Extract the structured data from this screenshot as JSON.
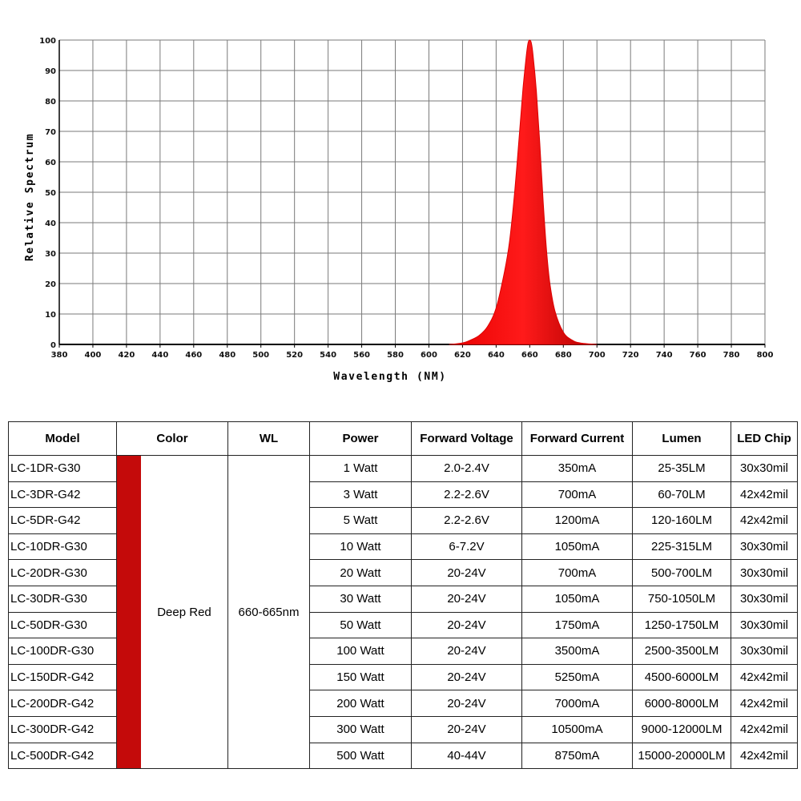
{
  "chart_data": {
    "type": "area",
    "title": "",
    "xlabel": "Wavelength (NM)",
    "ylabel": "Relative Spectrum",
    "xlim": [
      380,
      800
    ],
    "ylim": [
      0,
      100
    ],
    "x_ticks": [
      "380",
      "400",
      "420",
      "440",
      "460",
      "480",
      "500",
      "520",
      "540",
      "560",
      "580",
      "600",
      "620",
      "640",
      "660",
      "680",
      "700",
      "720",
      "740",
      "760",
      "780",
      "800"
    ],
    "y_ticks": [
      "0",
      "10",
      "20",
      "30",
      "40",
      "50",
      "60",
      "70",
      "80",
      "90",
      "100"
    ],
    "grid": true,
    "color": "#dd0000",
    "series": [
      {
        "x": [
          612,
          620,
          625,
          630,
          635,
          640,
          645,
          648,
          651,
          654,
          656,
          658,
          659,
          660,
          661,
          662,
          664,
          666,
          668,
          670,
          672,
          675,
          680,
          685,
          690,
          700
        ],
        "values": [
          0,
          0.5,
          1.5,
          3,
          6,
          12,
          24,
          34,
          50,
          70,
          84,
          95,
          99,
          100,
          99,
          95,
          83,
          66,
          47,
          31,
          20,
          11,
          4,
          1.5,
          0.5,
          0
        ]
      }
    ]
  },
  "table": {
    "headers": [
      "Model",
      "Color",
      "WL",
      "Power",
      "Forward Voltage",
      "Forward Current",
      "Lumen",
      "LED Chip"
    ],
    "color_name": "Deep Red",
    "color_hex": "#c40a0a",
    "wl": "660-665nm",
    "rows": [
      {
        "model": "LC-1DR-G30",
        "power": "1 Watt",
        "voltage": "2.0-2.4V",
        "current": "350mA",
        "lumen": "25-35LM",
        "chip": "30x30mil"
      },
      {
        "model": "LC-3DR-G42",
        "power": "3 Watt",
        "voltage": "2.2-2.6V",
        "current": "700mA",
        "lumen": "60-70LM",
        "chip": "42x42mil"
      },
      {
        "model": "LC-5DR-G42",
        "power": "5 Watt",
        "voltage": "2.2-2.6V",
        "current": "1200mA",
        "lumen": "120-160LM",
        "chip": "42x42mil"
      },
      {
        "model": "LC-10DR-G30",
        "power": "10 Watt",
        "voltage": "6-7.2V",
        "current": "1050mA",
        "lumen": "225-315LM",
        "chip": "30x30mil"
      },
      {
        "model": "LC-20DR-G30",
        "power": "20 Watt",
        "voltage": "20-24V",
        "current": "700mA",
        "lumen": "500-700LM",
        "chip": "30x30mil"
      },
      {
        "model": "LC-30DR-G30",
        "power": "30 Watt",
        "voltage": "20-24V",
        "current": "1050mA",
        "lumen": "750-1050LM",
        "chip": "30x30mil"
      },
      {
        "model": "LC-50DR-G30",
        "power": "50 Watt",
        "voltage": "20-24V",
        "current": "1750mA",
        "lumen": "1250-1750LM",
        "chip": "30x30mil"
      },
      {
        "model": "LC-100DR-G30",
        "power": "100 Watt",
        "voltage": "20-24V",
        "current": "3500mA",
        "lumen": "2500-3500LM",
        "chip": "30x30mil"
      },
      {
        "model": "LC-150DR-G42",
        "power": "150 Watt",
        "voltage": "20-24V",
        "current": "5250mA",
        "lumen": "4500-6000LM",
        "chip": "42x42mil"
      },
      {
        "model": "LC-200DR-G42",
        "power": "200 Watt",
        "voltage": "20-24V",
        "current": "7000mA",
        "lumen": "6000-8000LM",
        "chip": "42x42mil"
      },
      {
        "model": "LC-300DR-G42",
        "power": "300 Watt",
        "voltage": "20-24V",
        "current": "10500mA",
        "lumen": "9000-12000LM",
        "chip": "42x42mil"
      },
      {
        "model": "LC-500DR-G42",
        "power": "500 Watt",
        "voltage": "40-44V",
        "current": "8750mA",
        "lumen": "15000-20000LM",
        "chip": "42x42mil"
      }
    ]
  }
}
